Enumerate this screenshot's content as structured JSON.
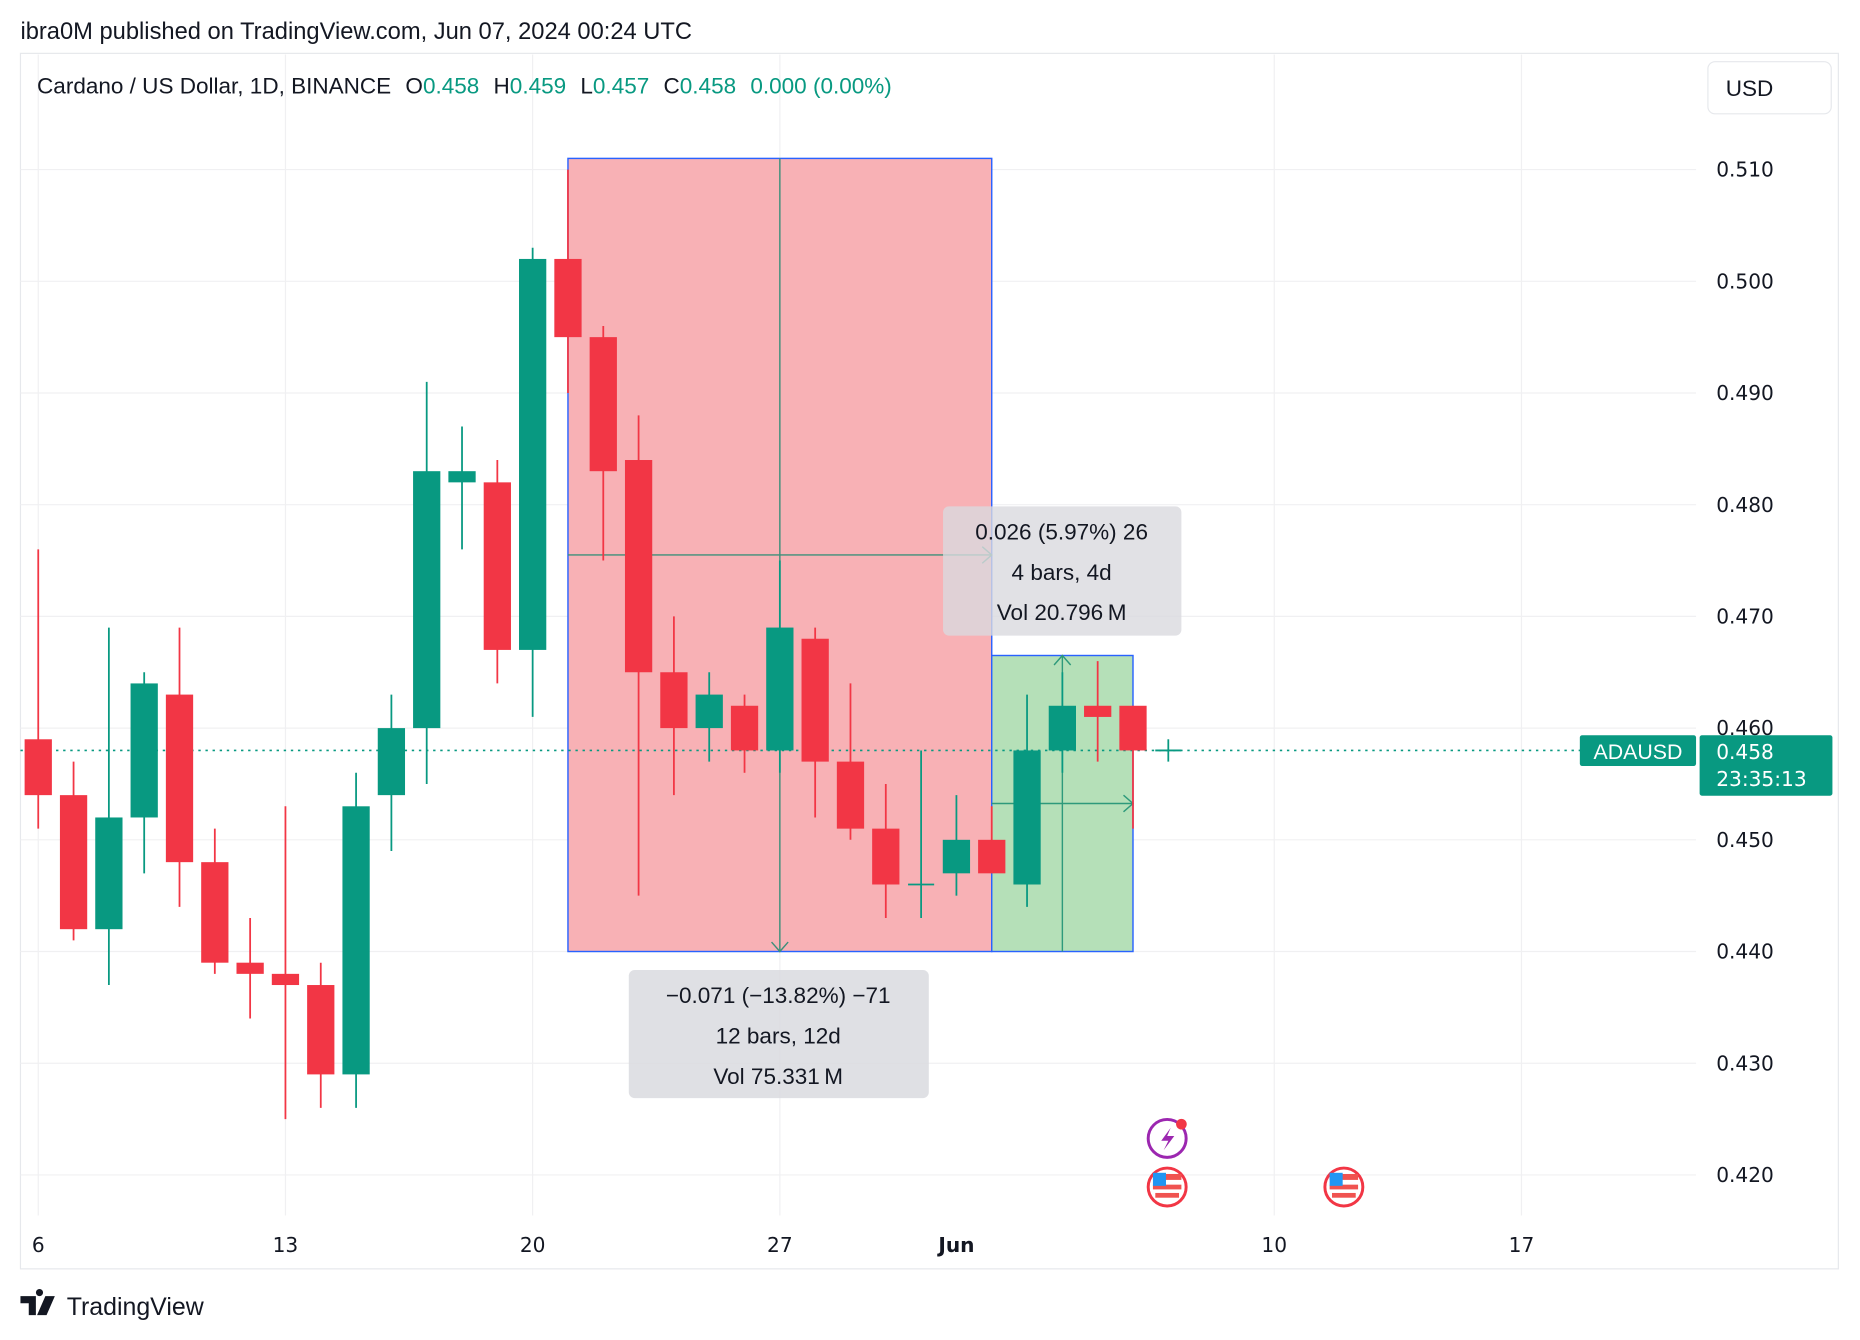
{
  "header": {
    "published": "ibra0M published on TradingView.com, Jun 07, 2024 00:24 UTC"
  },
  "legend": {
    "symbol": "Cardano / US Dollar, 1D, BINANCE",
    "o_label": "O",
    "o": "0.458",
    "h_label": "H",
    "h": "0.459",
    "l_label": "L",
    "l": "0.457",
    "c_label": "C",
    "c": "0.458",
    "change": "0.000 (0.00%)"
  },
  "currency_button": "USD",
  "price_tag": {
    "symbol": "ADAUSD",
    "price": "0.458",
    "countdown": "23:35:13"
  },
  "measure_down": {
    "line1": "−0.071 (−13.82%) −71",
    "line2": "12 bars, 12d",
    "line3": "Vol 75.331 M"
  },
  "measure_up": {
    "line1": "0.026 (5.97%) 26",
    "line2": "4 bars, 4d",
    "line3": "Vol 20.796 M"
  },
  "footer": {
    "brand": "TradingView"
  },
  "events": [
    "lightning-event-icon",
    "us-flag-event-icon",
    "us-flag-event-icon"
  ],
  "colors": {
    "up": "#089981",
    "down": "#f23645",
    "down_box": "#f8b1b5",
    "up_box": "#b5e0b8",
    "box_border": "#2962ff",
    "event_purple": "#9c27b0"
  },
  "chart_data": {
    "type": "candlestick",
    "title": "Cardano / US Dollar, 1D, BINANCE",
    "x_ticks": [
      "6",
      "13",
      "20",
      "27",
      "Jun",
      "10",
      "17"
    ],
    "y_ticks": [
      "0.510",
      "0.500",
      "0.490",
      "0.480",
      "0.470",
      "0.460",
      "0.450",
      "0.440",
      "0.430",
      "0.420"
    ],
    "ylim": [
      0.4165,
      0.5155
    ],
    "grid": true,
    "candles": [
      {
        "date": "2024-05-06",
        "o": 0.459,
        "h": 0.476,
        "l": 0.451,
        "c": 0.454
      },
      {
        "date": "2024-05-07",
        "o": 0.454,
        "h": 0.457,
        "l": 0.441,
        "c": 0.442
      },
      {
        "date": "2024-05-08",
        "o": 0.442,
        "h": 0.469,
        "l": 0.437,
        "c": 0.452
      },
      {
        "date": "2024-05-09",
        "o": 0.452,
        "h": 0.465,
        "l": 0.447,
        "c": 0.464
      },
      {
        "date": "2024-05-10",
        "o": 0.463,
        "h": 0.469,
        "l": 0.444,
        "c": 0.448
      },
      {
        "date": "2024-05-11",
        "o": 0.448,
        "h": 0.451,
        "l": 0.438,
        "c": 0.439
      },
      {
        "date": "2024-05-12",
        "o": 0.439,
        "h": 0.443,
        "l": 0.434,
        "c": 0.438
      },
      {
        "date": "2024-05-13",
        "o": 0.438,
        "h": 0.453,
        "l": 0.425,
        "c": 0.437
      },
      {
        "date": "2024-05-14",
        "o": 0.437,
        "h": 0.439,
        "l": 0.426,
        "c": 0.429
      },
      {
        "date": "2024-05-15",
        "o": 0.429,
        "h": 0.456,
        "l": 0.426,
        "c": 0.453
      },
      {
        "date": "2024-05-16",
        "o": 0.454,
        "h": 0.463,
        "l": 0.449,
        "c": 0.46
      },
      {
        "date": "2024-05-17",
        "o": 0.46,
        "h": 0.491,
        "l": 0.455,
        "c": 0.483
      },
      {
        "date": "2024-05-18",
        "o": 0.482,
        "h": 0.487,
        "l": 0.476,
        "c": 0.483
      },
      {
        "date": "2024-05-19",
        "o": 0.482,
        "h": 0.484,
        "l": 0.464,
        "c": 0.467
      },
      {
        "date": "2024-05-20",
        "o": 0.467,
        "h": 0.503,
        "l": 0.461,
        "c": 0.502
      },
      {
        "date": "2024-05-21",
        "o": 0.502,
        "h": 0.51,
        "l": 0.49,
        "c": 0.495
      },
      {
        "date": "2024-05-22",
        "o": 0.495,
        "h": 0.496,
        "l": 0.475,
        "c": 0.483
      },
      {
        "date": "2024-05-23",
        "o": 0.484,
        "h": 0.488,
        "l": 0.445,
        "c": 0.465
      },
      {
        "date": "2024-05-24",
        "o": 0.465,
        "h": 0.47,
        "l": 0.454,
        "c": 0.46
      },
      {
        "date": "2024-05-25",
        "o": 0.46,
        "h": 0.465,
        "l": 0.457,
        "c": 0.463
      },
      {
        "date": "2024-05-26",
        "o": 0.462,
        "h": 0.463,
        "l": 0.456,
        "c": 0.458
      },
      {
        "date": "2024-05-27",
        "o": 0.458,
        "h": 0.475,
        "l": 0.456,
        "c": 0.469
      },
      {
        "date": "2024-05-28",
        "o": 0.468,
        "h": 0.469,
        "l": 0.452,
        "c": 0.457
      },
      {
        "date": "2024-05-29",
        "o": 0.457,
        "h": 0.464,
        "l": 0.45,
        "c": 0.451
      },
      {
        "date": "2024-05-30",
        "o": 0.451,
        "h": 0.455,
        "l": 0.443,
        "c": 0.446
      },
      {
        "date": "2024-05-31",
        "o": 0.446,
        "h": 0.458,
        "l": 0.443,
        "c": 0.446
      },
      {
        "date": "2024-06-01",
        "o": 0.447,
        "h": 0.454,
        "l": 0.445,
        "c": 0.45
      },
      {
        "date": "2024-06-02",
        "o": 0.45,
        "h": 0.453,
        "l": 0.447,
        "c": 0.447
      },
      {
        "date": "2024-06-03",
        "o": 0.446,
        "h": 0.463,
        "l": 0.444,
        "c": 0.458
      },
      {
        "date": "2024-06-04",
        "o": 0.458,
        "h": 0.465,
        "l": 0.456,
        "c": 0.462
      },
      {
        "date": "2024-06-05",
        "o": 0.462,
        "h": 0.466,
        "l": 0.457,
        "c": 0.461
      },
      {
        "date": "2024-06-06",
        "o": 0.462,
        "h": 0.462,
        "l": 0.451,
        "c": 0.458
      },
      {
        "date": "2024-06-07",
        "o": 0.458,
        "h": 0.459,
        "l": 0.457,
        "c": 0.458
      }
    ],
    "last_price": 0.458,
    "ranges": [
      {
        "from": "2024-05-21",
        "to": "2024-06-02",
        "high": 0.511,
        "low": 0.44,
        "direction": "down"
      },
      {
        "from": "2024-06-02",
        "to": "2024-06-06",
        "high": 0.4665,
        "low": 0.44,
        "direction": "up"
      }
    ]
  }
}
